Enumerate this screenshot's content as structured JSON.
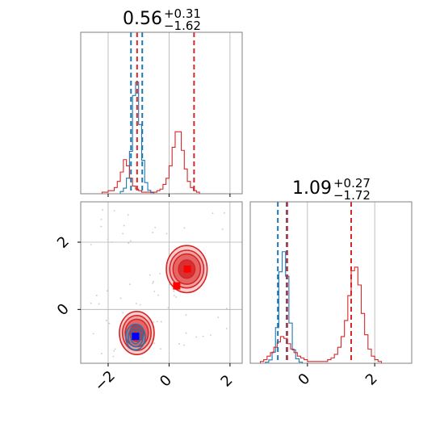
{
  "chart_data": {
    "type": "corner",
    "colors": {
      "blue": "#1f77b4",
      "red": "#d62728",
      "grid": "#b0b0b0",
      "frame": "#808080"
    },
    "panels": {
      "hist_x": {
        "title": {
          "main": "0.56",
          "sup": "+0.31",
          "sub": "−1.62"
        },
        "xlim": [
          -2.9,
          2.4
        ],
        "blue_hist": {
          "edges_start": -1.6,
          "bin_width": 0.1,
          "heights": [
            2,
            5,
            14,
            38,
            88,
            100,
            62,
            30,
            10,
            3,
            1
          ]
        },
        "red_hist": {
          "edges_start": -2.2,
          "bin_width": 0.1,
          "heights": [
            1,
            1,
            2,
            2,
            4,
            8,
            14,
            22,
            18,
            10,
            5,
            3,
            2,
            1,
            1,
            1,
            1,
            1,
            2,
            3,
            6,
            10,
            18,
            30,
            40,
            40,
            28,
            16,
            8,
            4,
            2,
            1
          ]
        },
        "blue_lines": [
          -1.25,
          -0.88
        ],
        "red_lines": [
          -1.05,
          0.82
        ],
        "grid_x": [
          -2,
          0,
          2
        ]
      },
      "hist_y": {
        "title": {
          "main": "1.09",
          "sup": "+0.27",
          "sub": "−1.72"
        },
        "xlim": [
          -1.7,
          3.1
        ],
        "blue_hist": {
          "edges_start": -1.25,
          "bin_width": 0.1,
          "heights": [
            1,
            3,
            10,
            32,
            82,
            100,
            78,
            36,
            12,
            4,
            1
          ]
        },
        "red_hist": {
          "edges_start": -1.4,
          "bin_width": 0.1,
          "heights": [
            1,
            2,
            4,
            6,
            9,
            12,
            15,
            14,
            11,
            8,
            6,
            4,
            3,
            2,
            1,
            1,
            1,
            1,
            1,
            1,
            2,
            3,
            5,
            9,
            15,
            24,
            38,
            52,
            54,
            44,
            28,
            16,
            8,
            4,
            2,
            1
          ]
        },
        "blue_lines": [
          -0.88,
          -0.62
        ],
        "red_lines": [
          -0.6,
          1.3
        ],
        "grid_x": [
          0,
          2
        ],
        "xticks": [
          {
            "value": 0,
            "label": "0"
          },
          {
            "value": 2,
            "label": "2"
          }
        ]
      },
      "joint": {
        "xlim": [
          -2.9,
          2.4
        ],
        "ylim": [
          -1.6,
          3.2
        ],
        "grid_x": [
          -2,
          0,
          2
        ],
        "grid_y": [
          0,
          2
        ],
        "xticks": [
          {
            "value": -2,
            "label": "−2"
          },
          {
            "value": 0,
            "label": "0"
          },
          {
            "value": 2,
            "label": "2"
          }
        ],
        "yticks": [
          {
            "value": 0,
            "label": "0"
          },
          {
            "value": 2,
            "label": "2"
          }
        ],
        "red_clusters": [
          {
            "cx": 0.58,
            "cy": 1.2,
            "rx": [
              0.27,
              0.45,
              0.56,
              0.67
            ],
            "ry": [
              0.27,
              0.45,
              0.56,
              0.7
            ]
          },
          {
            "cx": -1.06,
            "cy": -0.7,
            "rx": [
              0.23,
              0.38,
              0.47,
              0.57
            ],
            "ry": [
              0.25,
              0.41,
              0.52,
              0.64
            ]
          }
        ],
        "blue_cluster": {
          "cx": -1.1,
          "cy": -0.82,
          "rx": [
            0.16,
            0.24,
            0.32
          ],
          "ry": [
            0.2,
            0.29,
            0.38
          ]
        },
        "red_markers": [
          {
            "x": 0.6,
            "y": 1.2
          },
          {
            "x": 0.25,
            "y": 0.7
          }
        ],
        "blue_marker": {
          "x": -1.1,
          "y": -0.8
        }
      }
    }
  }
}
